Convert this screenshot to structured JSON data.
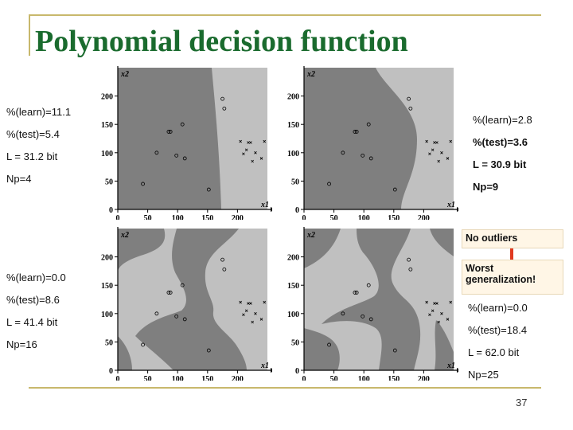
{
  "title": "Polynomial decision function",
  "page_number": "37",
  "colors": {
    "title": "#1a6b2e",
    "class_dark": "#7f7f7f",
    "class_light": "#c0c0c0",
    "rule": "#c8b86c",
    "box_bg": "#fff6e6",
    "connector": "#e03a20"
  },
  "panels": [
    {
      "stats": [
        "%(learn)=11.1",
        "%(test)=5.4",
        "L = 31.2 bit",
        "Np=4"
      ]
    },
    {
      "stats": [
        "%(learn)=2.8",
        "%(test)=3.6",
        "L = 30.9 bit",
        "Np=9"
      ]
    },
    {
      "stats": [
        "%(learn)=0.0",
        "%(test)=8.6",
        "L = 41.4 bit",
        "Np=16"
      ]
    },
    {
      "stats": [
        "%(learn)=0.0",
        "%(test)=18.4",
        "L = 62.0 bit",
        "Np=25"
      ]
    }
  ],
  "annotations": {
    "no_outliers": "No outliers",
    "worst_generalization": "Worst generalization!"
  },
  "chart_data": [
    {
      "type": "scatter",
      "xlabel": "x1",
      "ylabel": "x2",
      "xlim": [
        0,
        250
      ],
      "ylim": [
        0,
        250
      ],
      "xticks": [
        "0",
        "50",
        "100",
        "150",
        "200"
      ],
      "yticks": [
        "0",
        "50",
        "100",
        "150",
        "200"
      ],
      "series": [
        {
          "marker": "circle",
          "x": [
            42,
            65,
            85,
            88,
            98,
            112,
            108,
            152,
            175,
            178
          ],
          "y": [
            45,
            100,
            137,
            137,
            95,
            90,
            150,
            35,
            195,
            178
          ]
        },
        {
          "marker": "cross",
          "x": [
            205,
            210,
            215,
            218,
            222,
            225,
            230,
            240,
            245,
            255
          ],
          "y": [
            120,
            98,
            105,
            118,
            118,
            85,
            100,
            90,
            120,
            110
          ]
        }
      ]
    },
    {
      "type": "scatter",
      "xlabel": "x1",
      "ylabel": "x2",
      "xlim": [
        0,
        250
      ],
      "ylim": [
        0,
        250
      ],
      "xticks": [
        "0",
        "50",
        "100",
        "150",
        "200"
      ],
      "yticks": [
        "0",
        "50",
        "100",
        "150",
        "200"
      ],
      "series": [
        {
          "marker": "circle",
          "x": [
            42,
            65,
            85,
            88,
            98,
            112,
            108,
            152,
            175,
            178
          ],
          "y": [
            45,
            100,
            137,
            137,
            95,
            90,
            150,
            35,
            195,
            178
          ]
        },
        {
          "marker": "cross",
          "x": [
            205,
            210,
            215,
            218,
            222,
            225,
            230,
            240,
            245,
            255
          ],
          "y": [
            120,
            98,
            105,
            118,
            118,
            85,
            100,
            90,
            120,
            110
          ]
        }
      ]
    },
    {
      "type": "scatter",
      "xlabel": "x1",
      "ylabel": "x2",
      "xlim": [
        0,
        250
      ],
      "ylim": [
        0,
        250
      ],
      "xticks": [
        "0",
        "50",
        "100",
        "150",
        "200"
      ],
      "yticks": [
        "0",
        "50",
        "100",
        "150",
        "200"
      ],
      "series": [
        {
          "marker": "circle",
          "x": [
            42,
            65,
            85,
            88,
            98,
            112,
            108,
            152,
            175,
            178
          ],
          "y": [
            45,
            100,
            137,
            137,
            95,
            90,
            150,
            35,
            195,
            178
          ]
        },
        {
          "marker": "cross",
          "x": [
            205,
            210,
            215,
            218,
            222,
            225,
            230,
            240,
            245,
            255
          ],
          "y": [
            120,
            98,
            105,
            118,
            118,
            85,
            100,
            90,
            120,
            110
          ]
        }
      ]
    },
    {
      "type": "scatter",
      "xlabel": "x1",
      "ylabel": "x2",
      "xlim": [
        0,
        250
      ],
      "ylim": [
        0,
        250
      ],
      "xticks": [
        "0",
        "50",
        "100",
        "150",
        "200"
      ],
      "yticks": [
        "0",
        "50",
        "100",
        "150",
        "200"
      ],
      "series": [
        {
          "marker": "circle",
          "x": [
            42,
            65,
            85,
            88,
            98,
            112,
            108,
            152,
            175,
            178
          ],
          "y": [
            45,
            100,
            137,
            137,
            95,
            90,
            150,
            35,
            195,
            178
          ]
        },
        {
          "marker": "cross",
          "x": [
            205,
            210,
            215,
            218,
            222,
            225,
            230,
            240,
            245,
            255
          ],
          "y": [
            120,
            98,
            105,
            118,
            118,
            85,
            100,
            90,
            120,
            110
          ]
        }
      ]
    }
  ]
}
